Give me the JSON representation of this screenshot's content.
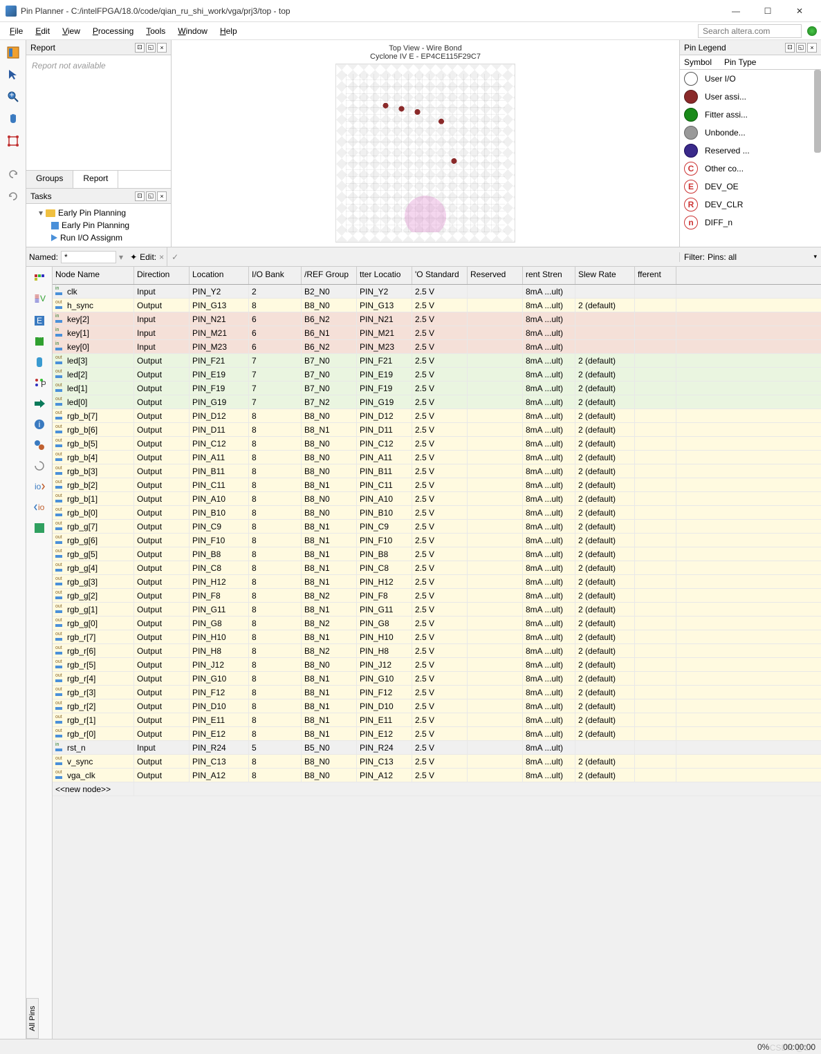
{
  "window": {
    "title": "Pin Planner - C:/intelFPGA/18.0/code/qian_ru_shi_work/vga/prj3/top - top"
  },
  "menu": [
    "File",
    "Edit",
    "View",
    "Processing",
    "Tools",
    "Window",
    "Help"
  ],
  "search_placeholder": "Search altera.com",
  "panes": {
    "report": {
      "title": "Report",
      "body": "Report not available",
      "tabs": [
        "Groups",
        "Report"
      ],
      "active_tab": 1
    },
    "tasks": {
      "title": "Tasks",
      "items": [
        {
          "indent": 0,
          "icon": "folder",
          "label": "Early Pin Planning",
          "expand": "▾"
        },
        {
          "indent": 1,
          "icon": "sq",
          "label": "Early Pin Planning"
        },
        {
          "indent": 1,
          "icon": "tri",
          "label": "Run I/O Assignm"
        }
      ]
    },
    "chip": {
      "title1": "Top View - Wire Bond",
      "title2": "Cyclone IV E - EP4CE115F29C7"
    },
    "legend": {
      "title": "Pin Legend",
      "cols": [
        "Symbol",
        "Pin Type"
      ],
      "items": [
        {
          "fill": "#ffffff",
          "stroke": "#555",
          "label": "User I/O"
        },
        {
          "fill": "#8a2a2a",
          "stroke": "#5a1a1a",
          "label": "User assi..."
        },
        {
          "fill": "#1a8a1a",
          "stroke": "#0a5a0a",
          "label": "Fitter assi..."
        },
        {
          "fill": "#999999",
          "stroke": "#666",
          "label": "Unbonde..."
        },
        {
          "fill": "#3a2a8a",
          "stroke": "#1a0a5a",
          "label": "Reserved ..."
        },
        {
          "letter": "C",
          "color": "#cc3333",
          "label": "Other co..."
        },
        {
          "letter": "E",
          "color": "#cc3333",
          "label": "DEV_OE"
        },
        {
          "letter": "R",
          "color": "#cc3333",
          "label": "DEV_CLR"
        },
        {
          "letter": "n",
          "color": "#cc3333",
          "label": "DIFF_n"
        }
      ]
    }
  },
  "filter": {
    "named_label": "Named:",
    "named_value": "*",
    "edit_label": "Edit:",
    "filter_label": "Filter:",
    "filter_value": "Pins: all"
  },
  "grid": {
    "columns": [
      "Node Name",
      "Direction",
      "Location",
      "I/O Bank",
      "/REF Group",
      "tter Locatio",
      "'O Standard",
      "Reserved",
      "rent Stren",
      "Slew Rate",
      "fferent"
    ],
    "row_colors": {
      "default": "#fffae0",
      "input_gray": "#f0f0f0",
      "input_pink": "#f5e0d8",
      "output_green": "#eaf5e0"
    },
    "rows": [
      {
        "c": "input_gray",
        "io": "in",
        "n": "clk",
        "d": "Input",
        "l": "PIN_Y2",
        "b": "2",
        "v": "B2_N0",
        "f": "PIN_Y2",
        "s": "2.5 V",
        "r": "",
        "cs": "8mA ...ult)",
        "sr": ""
      },
      {
        "c": "default",
        "io": "out",
        "n": "h_sync",
        "d": "Output",
        "l": "PIN_G13",
        "b": "8",
        "v": "B8_N0",
        "f": "PIN_G13",
        "s": "2.5 V",
        "r": "",
        "cs": "8mA ...ult)",
        "sr": "2 (default)"
      },
      {
        "c": "input_pink",
        "io": "in",
        "n": "key[2]",
        "d": "Input",
        "l": "PIN_N21",
        "b": "6",
        "v": "B6_N2",
        "f": "PIN_N21",
        "s": "2.5 V",
        "r": "",
        "cs": "8mA ...ult)",
        "sr": ""
      },
      {
        "c": "input_pink",
        "io": "in",
        "n": "key[1]",
        "d": "Input",
        "l": "PIN_M21",
        "b": "6",
        "v": "B6_N1",
        "f": "PIN_M21",
        "s": "2.5 V",
        "r": "",
        "cs": "8mA ...ult)",
        "sr": ""
      },
      {
        "c": "input_pink",
        "io": "in",
        "n": "key[0]",
        "d": "Input",
        "l": "PIN_M23",
        "b": "6",
        "v": "B6_N2",
        "f": "PIN_M23",
        "s": "2.5 V",
        "r": "",
        "cs": "8mA ...ult)",
        "sr": ""
      },
      {
        "c": "output_green",
        "io": "out",
        "n": "led[3]",
        "d": "Output",
        "l": "PIN_F21",
        "b": "7",
        "v": "B7_N0",
        "f": "PIN_F21",
        "s": "2.5 V",
        "r": "",
        "cs": "8mA ...ult)",
        "sr": "2 (default)"
      },
      {
        "c": "output_green",
        "io": "out",
        "n": "led[2]",
        "d": "Output",
        "l": "PIN_E19",
        "b": "7",
        "v": "B7_N0",
        "f": "PIN_E19",
        "s": "2.5 V",
        "r": "",
        "cs": "8mA ...ult)",
        "sr": "2 (default)"
      },
      {
        "c": "output_green",
        "io": "out",
        "n": "led[1]",
        "d": "Output",
        "l": "PIN_F19",
        "b": "7",
        "v": "B7_N0",
        "f": "PIN_F19",
        "s": "2.5 V",
        "r": "",
        "cs": "8mA ...ult)",
        "sr": "2 (default)"
      },
      {
        "c": "output_green",
        "io": "out",
        "n": "led[0]",
        "d": "Output",
        "l": "PIN_G19",
        "b": "7",
        "v": "B7_N2",
        "f": "PIN_G19",
        "s": "2.5 V",
        "r": "",
        "cs": "8mA ...ult)",
        "sr": "2 (default)"
      },
      {
        "c": "default",
        "io": "out",
        "n": "rgb_b[7]",
        "d": "Output",
        "l": "PIN_D12",
        "b": "8",
        "v": "B8_N0",
        "f": "PIN_D12",
        "s": "2.5 V",
        "r": "",
        "cs": "8mA ...ult)",
        "sr": "2 (default)"
      },
      {
        "c": "default",
        "io": "out",
        "n": "rgb_b[6]",
        "d": "Output",
        "l": "PIN_D11",
        "b": "8",
        "v": "B8_N1",
        "f": "PIN_D11",
        "s": "2.5 V",
        "r": "",
        "cs": "8mA ...ult)",
        "sr": "2 (default)"
      },
      {
        "c": "default",
        "io": "out",
        "n": "rgb_b[5]",
        "d": "Output",
        "l": "PIN_C12",
        "b": "8",
        "v": "B8_N0",
        "f": "PIN_C12",
        "s": "2.5 V",
        "r": "",
        "cs": "8mA ...ult)",
        "sr": "2 (default)"
      },
      {
        "c": "default",
        "io": "out",
        "n": "rgb_b[4]",
        "d": "Output",
        "l": "PIN_A11",
        "b": "8",
        "v": "B8_N0",
        "f": "PIN_A11",
        "s": "2.5 V",
        "r": "",
        "cs": "8mA ...ult)",
        "sr": "2 (default)"
      },
      {
        "c": "default",
        "io": "out",
        "n": "rgb_b[3]",
        "d": "Output",
        "l": "PIN_B11",
        "b": "8",
        "v": "B8_N0",
        "f": "PIN_B11",
        "s": "2.5 V",
        "r": "",
        "cs": "8mA ...ult)",
        "sr": "2 (default)"
      },
      {
        "c": "default",
        "io": "out",
        "n": "rgb_b[2]",
        "d": "Output",
        "l": "PIN_C11",
        "b": "8",
        "v": "B8_N1",
        "f": "PIN_C11",
        "s": "2.5 V",
        "r": "",
        "cs": "8mA ...ult)",
        "sr": "2 (default)"
      },
      {
        "c": "default",
        "io": "out",
        "n": "rgb_b[1]",
        "d": "Output",
        "l": "PIN_A10",
        "b": "8",
        "v": "B8_N0",
        "f": "PIN_A10",
        "s": "2.5 V",
        "r": "",
        "cs": "8mA ...ult)",
        "sr": "2 (default)"
      },
      {
        "c": "default",
        "io": "out",
        "n": "rgb_b[0]",
        "d": "Output",
        "l": "PIN_B10",
        "b": "8",
        "v": "B8_N0",
        "f": "PIN_B10",
        "s": "2.5 V",
        "r": "",
        "cs": "8mA ...ult)",
        "sr": "2 (default)"
      },
      {
        "c": "default",
        "io": "out",
        "n": "rgb_g[7]",
        "d": "Output",
        "l": "PIN_C9",
        "b": "8",
        "v": "B8_N1",
        "f": "PIN_C9",
        "s": "2.5 V",
        "r": "",
        "cs": "8mA ...ult)",
        "sr": "2 (default)"
      },
      {
        "c": "default",
        "io": "out",
        "n": "rgb_g[6]",
        "d": "Output",
        "l": "PIN_F10",
        "b": "8",
        "v": "B8_N1",
        "f": "PIN_F10",
        "s": "2.5 V",
        "r": "",
        "cs": "8mA ...ult)",
        "sr": "2 (default)"
      },
      {
        "c": "default",
        "io": "out",
        "n": "rgb_g[5]",
        "d": "Output",
        "l": "PIN_B8",
        "b": "8",
        "v": "B8_N1",
        "f": "PIN_B8",
        "s": "2.5 V",
        "r": "",
        "cs": "8mA ...ult)",
        "sr": "2 (default)"
      },
      {
        "c": "default",
        "io": "out",
        "n": "rgb_g[4]",
        "d": "Output",
        "l": "PIN_C8",
        "b": "8",
        "v": "B8_N1",
        "f": "PIN_C8",
        "s": "2.5 V",
        "r": "",
        "cs": "8mA ...ult)",
        "sr": "2 (default)"
      },
      {
        "c": "default",
        "io": "out",
        "n": "rgb_g[3]",
        "d": "Output",
        "l": "PIN_H12",
        "b": "8",
        "v": "B8_N1",
        "f": "PIN_H12",
        "s": "2.5 V",
        "r": "",
        "cs": "8mA ...ult)",
        "sr": "2 (default)"
      },
      {
        "c": "default",
        "io": "out",
        "n": "rgb_g[2]",
        "d": "Output",
        "l": "PIN_F8",
        "b": "8",
        "v": "B8_N2",
        "f": "PIN_F8",
        "s": "2.5 V",
        "r": "",
        "cs": "8mA ...ult)",
        "sr": "2 (default)"
      },
      {
        "c": "default",
        "io": "out",
        "n": "rgb_g[1]",
        "d": "Output",
        "l": "PIN_G11",
        "b": "8",
        "v": "B8_N1",
        "f": "PIN_G11",
        "s": "2.5 V",
        "r": "",
        "cs": "8mA ...ult)",
        "sr": "2 (default)"
      },
      {
        "c": "default",
        "io": "out",
        "n": "rgb_g[0]",
        "d": "Output",
        "l": "PIN_G8",
        "b": "8",
        "v": "B8_N2",
        "f": "PIN_G8",
        "s": "2.5 V",
        "r": "",
        "cs": "8mA ...ult)",
        "sr": "2 (default)"
      },
      {
        "c": "default",
        "io": "out",
        "n": "rgb_r[7]",
        "d": "Output",
        "l": "PIN_H10",
        "b": "8",
        "v": "B8_N1",
        "f": "PIN_H10",
        "s": "2.5 V",
        "r": "",
        "cs": "8mA ...ult)",
        "sr": "2 (default)"
      },
      {
        "c": "default",
        "io": "out",
        "n": "rgb_r[6]",
        "d": "Output",
        "l": "PIN_H8",
        "b": "8",
        "v": "B8_N2",
        "f": "PIN_H8",
        "s": "2.5 V",
        "r": "",
        "cs": "8mA ...ult)",
        "sr": "2 (default)"
      },
      {
        "c": "default",
        "io": "out",
        "n": "rgb_r[5]",
        "d": "Output",
        "l": "PIN_J12",
        "b": "8",
        "v": "B8_N0",
        "f": "PIN_J12",
        "s": "2.5 V",
        "r": "",
        "cs": "8mA ...ult)",
        "sr": "2 (default)"
      },
      {
        "c": "default",
        "io": "out",
        "n": "rgb_r[4]",
        "d": "Output",
        "l": "PIN_G10",
        "b": "8",
        "v": "B8_N1",
        "f": "PIN_G10",
        "s": "2.5 V",
        "r": "",
        "cs": "8mA ...ult)",
        "sr": "2 (default)"
      },
      {
        "c": "default",
        "io": "out",
        "n": "rgb_r[3]",
        "d": "Output",
        "l": "PIN_F12",
        "b": "8",
        "v": "B8_N1",
        "f": "PIN_F12",
        "s": "2.5 V",
        "r": "",
        "cs": "8mA ...ult)",
        "sr": "2 (default)"
      },
      {
        "c": "default",
        "io": "out",
        "n": "rgb_r[2]",
        "d": "Output",
        "l": "PIN_D10",
        "b": "8",
        "v": "B8_N1",
        "f": "PIN_D10",
        "s": "2.5 V",
        "r": "",
        "cs": "8mA ...ult)",
        "sr": "2 (default)"
      },
      {
        "c": "default",
        "io": "out",
        "n": "rgb_r[1]",
        "d": "Output",
        "l": "PIN_E11",
        "b": "8",
        "v": "B8_N1",
        "f": "PIN_E11",
        "s": "2.5 V",
        "r": "",
        "cs": "8mA ...ult)",
        "sr": "2 (default)"
      },
      {
        "c": "default",
        "io": "out",
        "n": "rgb_r[0]",
        "d": "Output",
        "l": "PIN_E12",
        "b": "8",
        "v": "B8_N1",
        "f": "PIN_E12",
        "s": "2.5 V",
        "r": "",
        "cs": "8mA ...ult)",
        "sr": "2 (default)"
      },
      {
        "c": "input_gray",
        "io": "in",
        "n": "rst_n",
        "d": "Input",
        "l": "PIN_R24",
        "b": "5",
        "v": "B5_N0",
        "f": "PIN_R24",
        "s": "2.5 V",
        "r": "",
        "cs": "8mA ...ult)",
        "sr": ""
      },
      {
        "c": "default",
        "io": "out",
        "n": "v_sync",
        "d": "Output",
        "l": "PIN_C13",
        "b": "8",
        "v": "B8_N0",
        "f": "PIN_C13",
        "s": "2.5 V",
        "r": "",
        "cs": "8mA ...ult)",
        "sr": "2 (default)"
      },
      {
        "c": "default",
        "io": "out",
        "n": "vga_clk",
        "d": "Output",
        "l": "PIN_A12",
        "b": "8",
        "v": "B8_N0",
        "f": "PIN_A12",
        "s": "2.5 V",
        "r": "",
        "cs": "8mA ...ult)",
        "sr": "2 (default)"
      }
    ],
    "new_node": "<<new node>>"
  },
  "vtab": "All Pins",
  "status": {
    "pct": "0%",
    "time": "00:00:00"
  },
  "watermark": "CSDN @LX"
}
